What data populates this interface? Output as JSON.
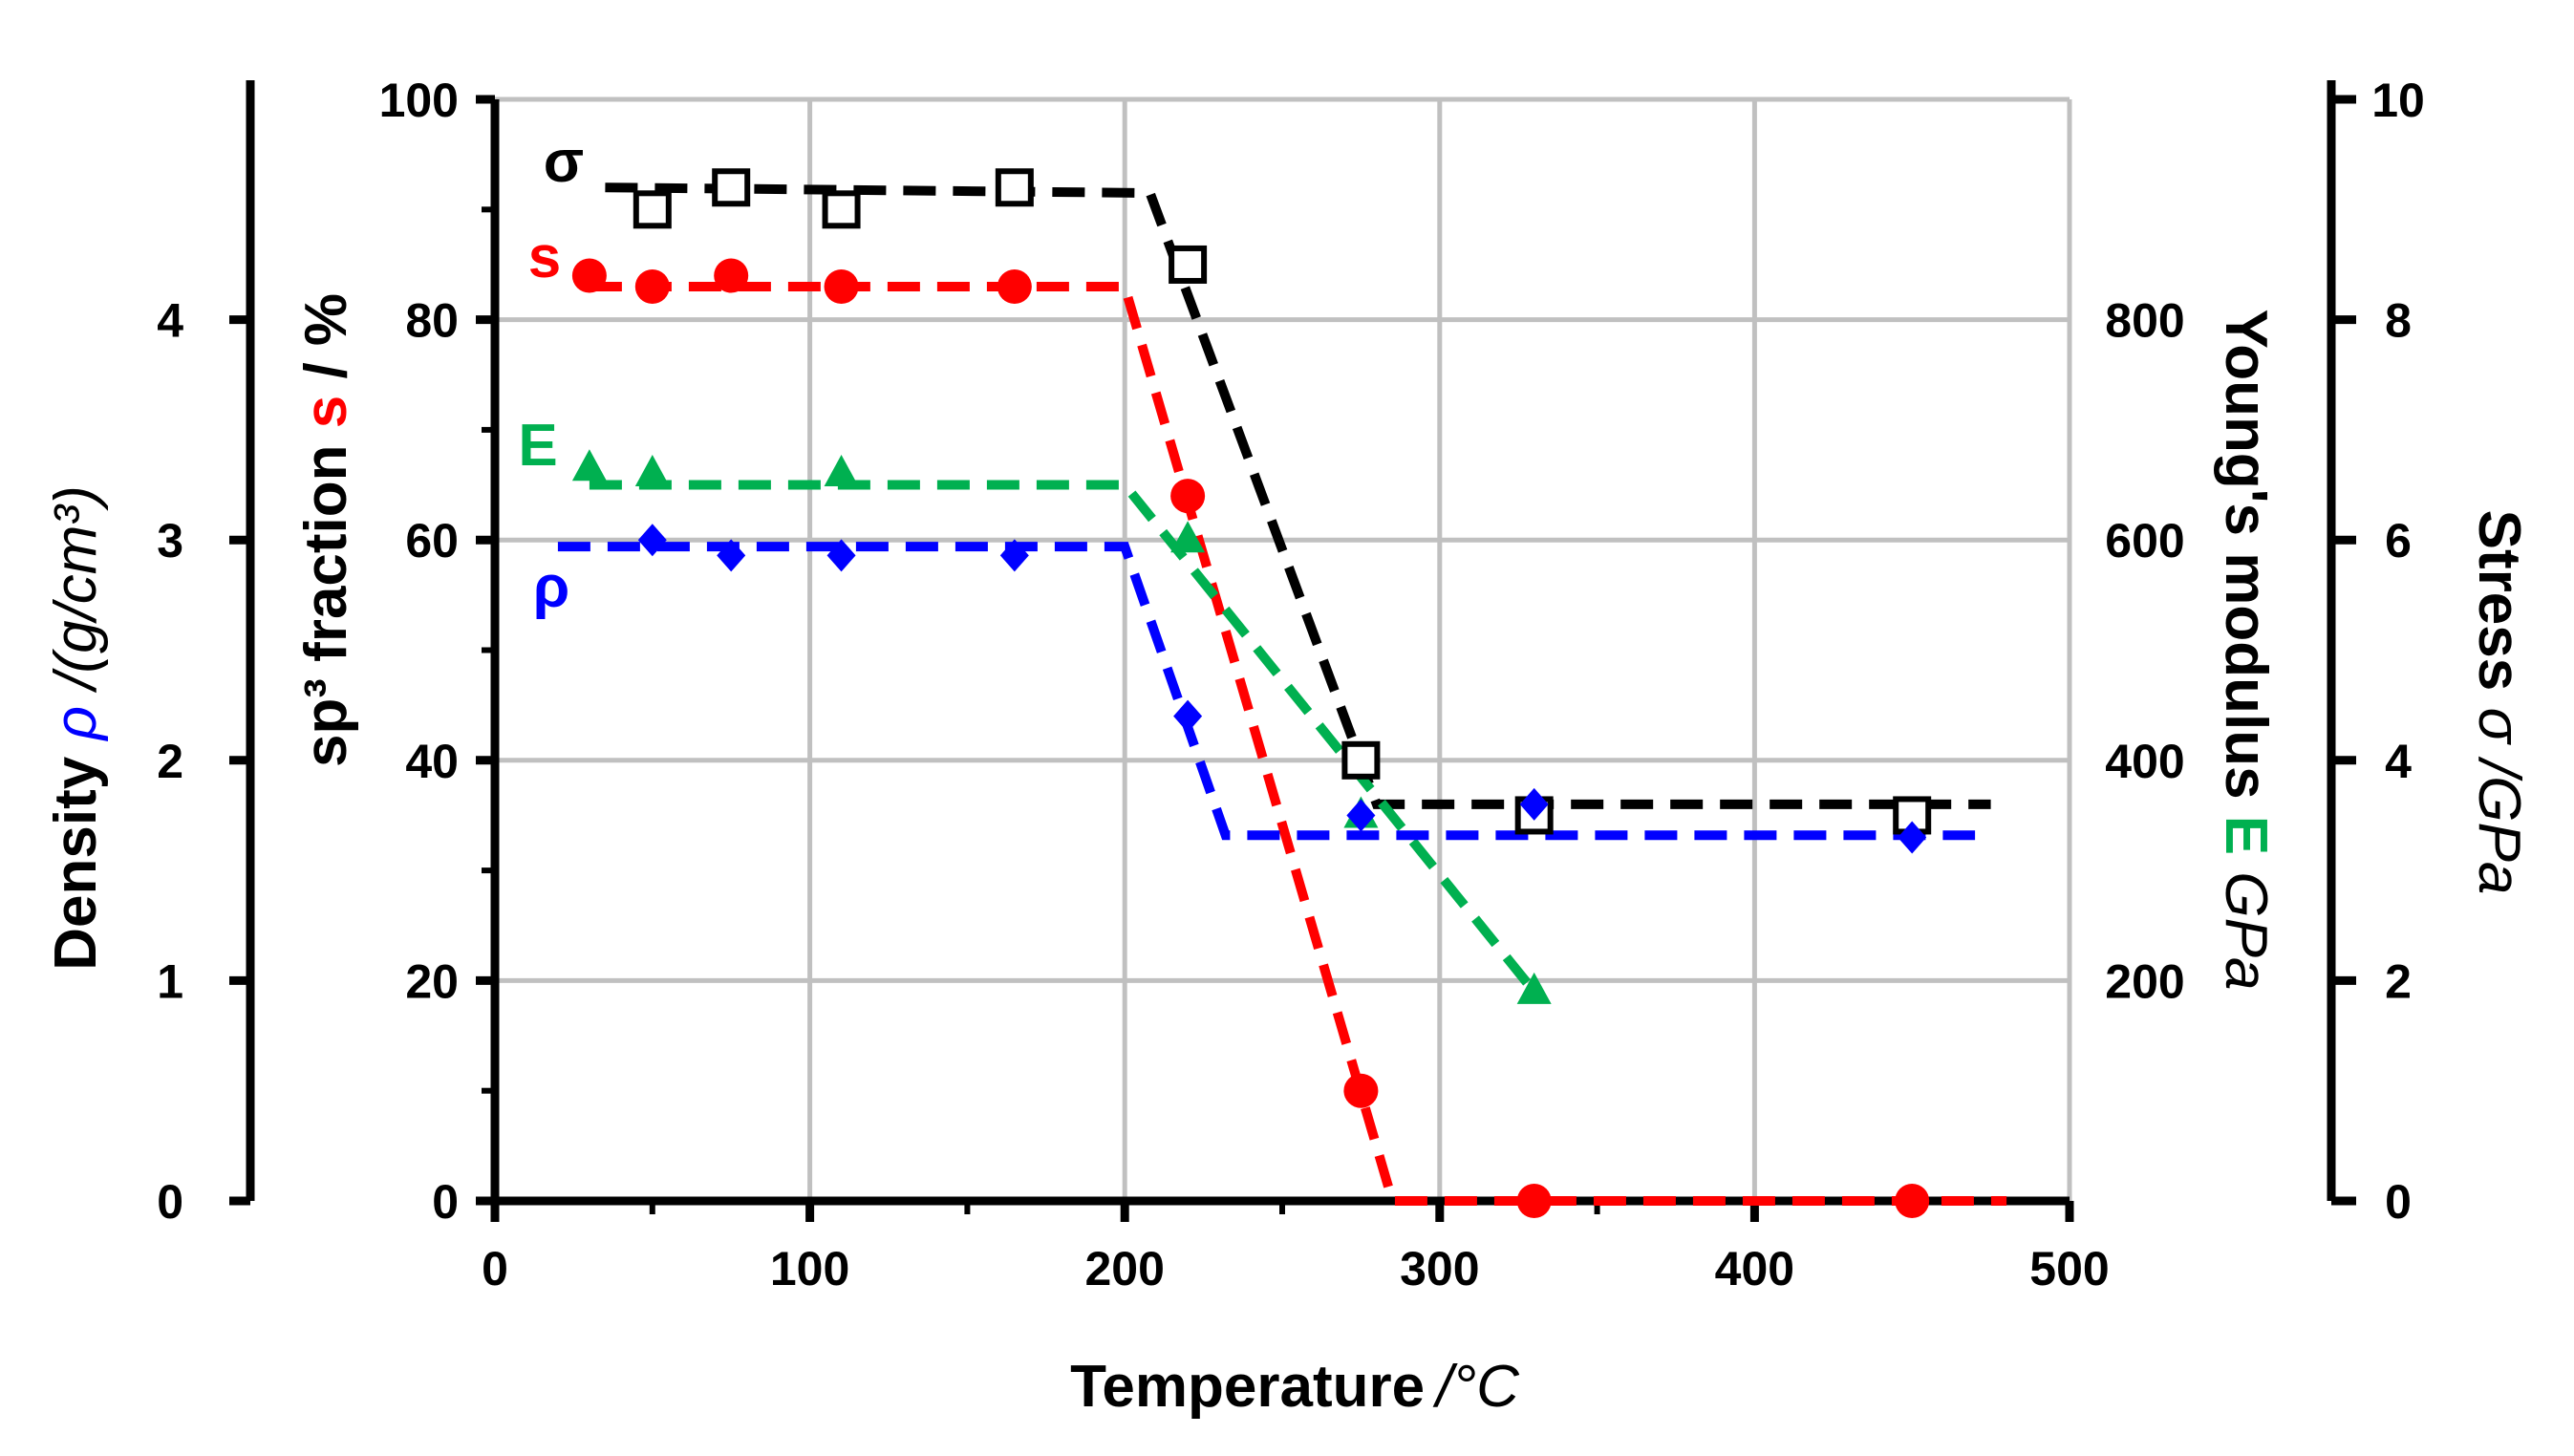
{
  "chart_data": {
    "type": "scatter",
    "xlabel": "Temperature",
    "xlabel_unit": "/°C",
    "xlim": [
      0,
      500
    ],
    "x_ticks": [
      "0",
      "100",
      "200",
      "300",
      "400",
      "500"
    ],
    "grid": true,
    "axes": {
      "sp3": {
        "title_prefix": "sp³ fraction ",
        "symbol": "s",
        "title_suffix": " / %",
        "ylim": [
          0,
          100
        ],
        "ticks": [
          "0",
          "20",
          "40",
          "60",
          "80",
          "100"
        ]
      },
      "density": {
        "title_prefix": "Density ",
        "symbol": "ρ",
        "title_suffix": " /(g/cm³)",
        "ylim": [
          0,
          5
        ],
        "ticks": [
          "0",
          "1",
          "2",
          "3",
          "4"
        ]
      },
      "modulus": {
        "title_prefix": "Young's modulus ",
        "symbol": "E",
        "title_suffix": " GPa",
        "ylim": [
          0,
          1000
        ],
        "ticks": [
          "200",
          "400",
          "600",
          "800"
        ]
      },
      "stress": {
        "title_prefix": "Stress ",
        "symbol": "σ",
        "title_suffix": " /GPa",
        "ylim": [
          0,
          10
        ],
        "ticks": [
          "0",
          "2",
          "4",
          "6",
          "8",
          "10"
        ]
      }
    },
    "series": [
      {
        "name": "σ",
        "axis": "stress",
        "color": "#000000",
        "marker": "open-square",
        "x": [
          50,
          75,
          110,
          165,
          220,
          275,
          330,
          450
        ],
        "values": [
          9.0,
          9.2,
          9.0,
          9.2,
          8.5,
          4.0,
          3.5,
          3.5
        ],
        "fit": [
          [
            35,
            9.2
          ],
          [
            208,
            9.15
          ],
          [
            280,
            3.6
          ],
          [
            475,
            3.6
          ]
        ]
      },
      {
        "name": "s",
        "axis": "sp3",
        "color": "#ff0000",
        "marker": "circle",
        "x": [
          30,
          50,
          75,
          110,
          165,
          220,
          275,
          330,
          450
        ],
        "values": [
          84,
          83,
          84,
          83,
          83,
          64,
          10,
          0,
          0
        ],
        "fit": [
          [
            30,
            83
          ],
          [
            200,
            83
          ],
          [
            285,
            0
          ],
          [
            480,
            0
          ]
        ]
      },
      {
        "name": "E",
        "axis": "modulus",
        "color": "#00b050",
        "marker": "triangle",
        "x": [
          30,
          50,
          110,
          220,
          275,
          330
        ],
        "values": [
          665,
          660,
          660,
          600,
          350,
          190
        ],
        "fit": [
          [
            30,
            650
          ],
          [
            200,
            650
          ],
          [
            330,
            190
          ]
        ]
      },
      {
        "name": "ρ",
        "axis": "density",
        "color": "#0000ff",
        "marker": "diamond",
        "x": [
          50,
          75,
          110,
          165,
          220,
          275,
          330,
          450
        ],
        "values": [
          3.0,
          2.93,
          2.93,
          2.93,
          2.2,
          1.75,
          1.8,
          1.65
        ],
        "fit": [
          [
            20,
            2.97
          ],
          [
            200,
            2.97
          ],
          [
            232,
            1.66
          ],
          [
            470,
            1.66
          ]
        ]
      }
    ]
  }
}
